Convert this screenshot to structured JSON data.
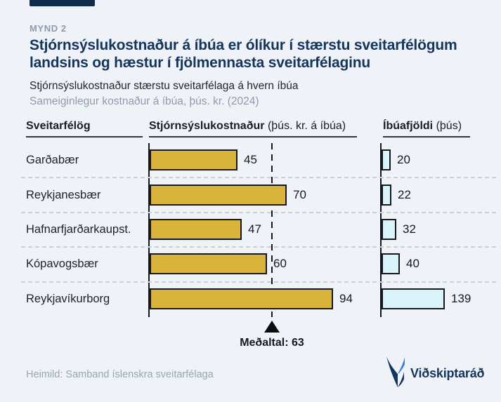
{
  "figure_label": "MYND 2",
  "title_line1": "Stjórnsýslukostnaður á íbúa er ólíkur í stærstu sveitarfélögum",
  "title_line2": "landsins og hæstur í fjölmennasta sveitarfélaginu",
  "subtitle": "Stjórnsýslukostnaður stærstu sveitarfélaga á hvern íbúa",
  "subtitle2": "Sameiginlegur kostnaður á íbúa, þús. kr. (2024)",
  "columns": {
    "municipality": "Sveitarfélög",
    "cost_bold": "Stjórnsýslukostnaður",
    "cost_unit": "(þús. kr. á íbúa)",
    "population_bold": "Íbúafjöldi",
    "population_unit": "(þús)"
  },
  "chart_data": {
    "type": "bar",
    "orientation": "horizontal",
    "categories": [
      "Garðabær",
      "Reykjanesbær",
      "Hafnarfjarðarkaupst.",
      "Kópavogsbær",
      "Reykjavíkurborg"
    ],
    "series": [
      {
        "name": "Stjórnsýslukostnaður (þús. kr. á íbúa)",
        "values": [
          45,
          70,
          47,
          60,
          94
        ],
        "color": "#d9b33a"
      },
      {
        "name": "Íbúafjöldi (þús)",
        "values": [
          20,
          22,
          32,
          40,
          139
        ],
        "color": "#d9f5f9"
      }
    ],
    "average": {
      "value": 63,
      "label": "Meðaltal: 63"
    },
    "year": "2024",
    "grid": "dashed row separators",
    "legend_position": "none"
  },
  "footer": {
    "source": "Heimild: Samband íslenskra sveitarfélaga",
    "brand": "Viðskiptaráð"
  },
  "colors": {
    "background": "#eff2f7",
    "title_navy": "#14355e",
    "tab_navy": "#112b4d",
    "muted_gray": "#8f9bad",
    "cost_bar": "#d9b33a",
    "population_bar": "#d9f5f9",
    "bar_border": "#15181c",
    "logo_blue": "#2e7de0"
  }
}
